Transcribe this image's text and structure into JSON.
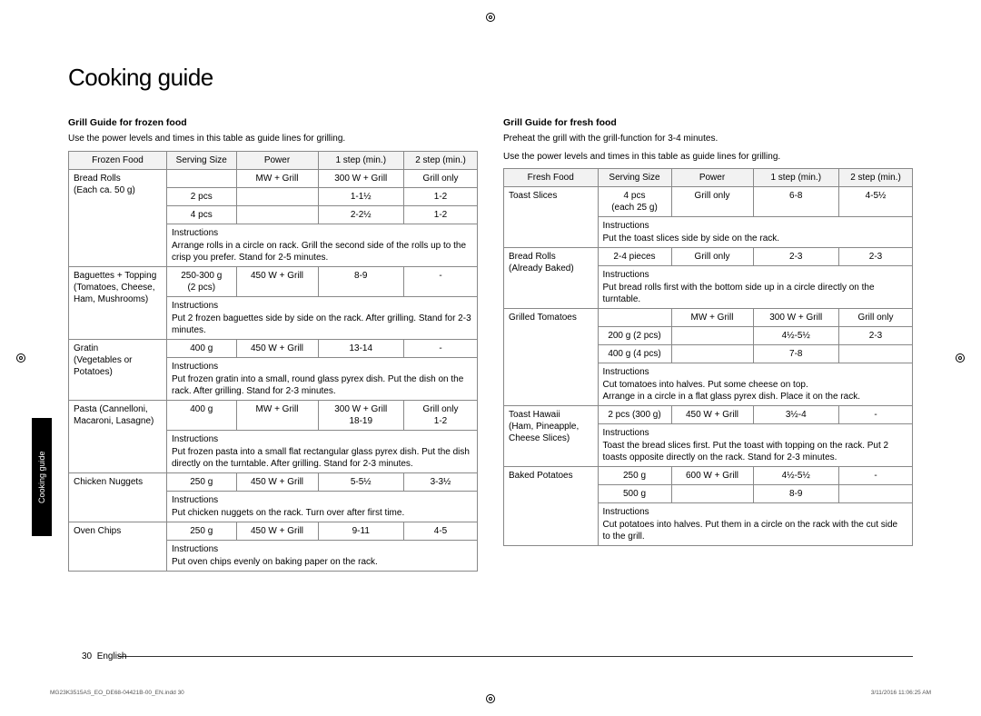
{
  "title": "Cooking guide",
  "sidebar_label": "Cooking guide",
  "page_footer": {
    "num": "30",
    "lang": "English"
  },
  "tiny_footer": {
    "left": "MG23K3515AS_EO_DE68-04421B-00_EN.indd   30",
    "right": "3/11/2016   11:06:25 AM"
  },
  "frozen": {
    "heading": "Grill Guide for frozen food",
    "intro": "Use the power levels and times in this table as guide lines for grilling.",
    "headers": [
      "Frozen Food",
      "Serving Size",
      "Power",
      "1 step (min.)",
      "2 step (min.)"
    ],
    "col_widths": [
      "24%",
      "17%",
      "20%",
      "21%",
      "18%"
    ],
    "rows": [
      {
        "food": "Bread Rolls\n(Each ca. 50 g)",
        "data": [
          [
            "",
            "MW + Grill",
            "300 W + Grill",
            "Grill only"
          ],
          [
            "2 pcs",
            "",
            "1-1½",
            "1-2"
          ],
          [
            "4 pcs",
            "",
            "2-2½",
            "1-2"
          ]
        ],
        "instructions": "Arrange rolls in a circle on rack. Grill the second side of the rolls up to the crisp you prefer. Stand for 2-5 minutes."
      },
      {
        "food": "Baguettes + Topping\n(Tomatoes, Cheese, Ham, Mushrooms)",
        "data": [
          [
            "250-300 g\n(2 pcs)",
            "450 W + Grill",
            "8-9",
            "-"
          ]
        ],
        "instructions": "Put 2 frozen baguettes side by side on the rack. After grilling. Stand for 2-3 minutes."
      },
      {
        "food": "Gratin\n(Vegetables or Potatoes)",
        "data": [
          [
            "400 g",
            "450 W + Grill",
            "13-14",
            "-"
          ]
        ],
        "instructions": "Put frozen gratin into a small, round glass pyrex dish. Put the dish on the rack. After grilling. Stand for 2-3 minutes."
      },
      {
        "food": "Pasta (Cannelloni, Macaroni, Lasagne)",
        "data": [
          [
            "400 g",
            "MW + Grill",
            "300 W + Grill\n18-19",
            "Grill only\n1-2"
          ]
        ],
        "instructions": "Put frozen pasta into a small flat rectangular glass pyrex dish. Put the dish directly on the turntable. After grilling. Stand for 2-3 minutes."
      },
      {
        "food": "Chicken Nuggets",
        "data": [
          [
            "250 g",
            "450 W + Grill",
            "5-5½",
            "3-3½"
          ]
        ],
        "instructions": "Put chicken nuggets on the rack. Turn over after first time."
      },
      {
        "food": "Oven Chips",
        "data": [
          [
            "250 g",
            "450 W + Grill",
            "9-11",
            "4-5"
          ]
        ],
        "instructions": "Put oven chips evenly on baking paper on the rack."
      }
    ]
  },
  "fresh": {
    "heading": "Grill Guide for fresh food",
    "intro_1": "Preheat the grill with the grill-function for 3-4 minutes.",
    "intro_2": "Use the power levels and times in this table as guide lines for grilling.",
    "headers": [
      "Fresh Food",
      "Serving Size",
      "Power",
      "1 step (min.)",
      "2 step (min.)"
    ],
    "col_widths": [
      "23%",
      "18%",
      "20%",
      "21%",
      "18%"
    ],
    "rows": [
      {
        "food": "Toast Slices",
        "data": [
          [
            "4 pcs\n(each 25 g)",
            "Grill only",
            "6-8",
            "4-5½"
          ]
        ],
        "instructions": "Put the toast slices side by side on the rack."
      },
      {
        "food": "Bread Rolls\n(Already Baked)",
        "data": [
          [
            "2-4 pieces",
            "Grill only",
            "2-3",
            "2-3"
          ]
        ],
        "instructions": "Put bread rolls first with the bottom side up in a circle directly on the turntable."
      },
      {
        "food": "Grilled Tomatoes",
        "data": [
          [
            "",
            "MW + Grill",
            "300 W + Grill",
            "Grill only"
          ],
          [
            "200 g (2 pcs)",
            "",
            "4½-5½",
            "2-3"
          ],
          [
            "400 g (4 pcs)",
            "",
            "7-8",
            ""
          ]
        ],
        "instructions": "Cut tomatoes into halves. Put some cheese on top.\nArrange in a circle in a flat glass pyrex dish. Place it on the rack."
      },
      {
        "food": "Toast Hawaii\n(Ham, Pineapple, Cheese Slices)",
        "data": [
          [
            "2 pcs (300 g)",
            "450 W + Grill",
            "3½-4",
            "-"
          ]
        ],
        "instructions": "Toast the bread slices first. Put the toast with topping on the rack. Put 2 toasts opposite directly on the rack. Stand for 2-3 minutes."
      },
      {
        "food": "Baked Potatoes",
        "data": [
          [
            "250 g",
            "600 W + Grill",
            "4½-5½",
            "-"
          ],
          [
            "500 g",
            "",
            "8-9",
            ""
          ]
        ],
        "instructions": "Cut potatoes into halves. Put them in a circle on the rack with the cut side to the grill."
      }
    ]
  }
}
